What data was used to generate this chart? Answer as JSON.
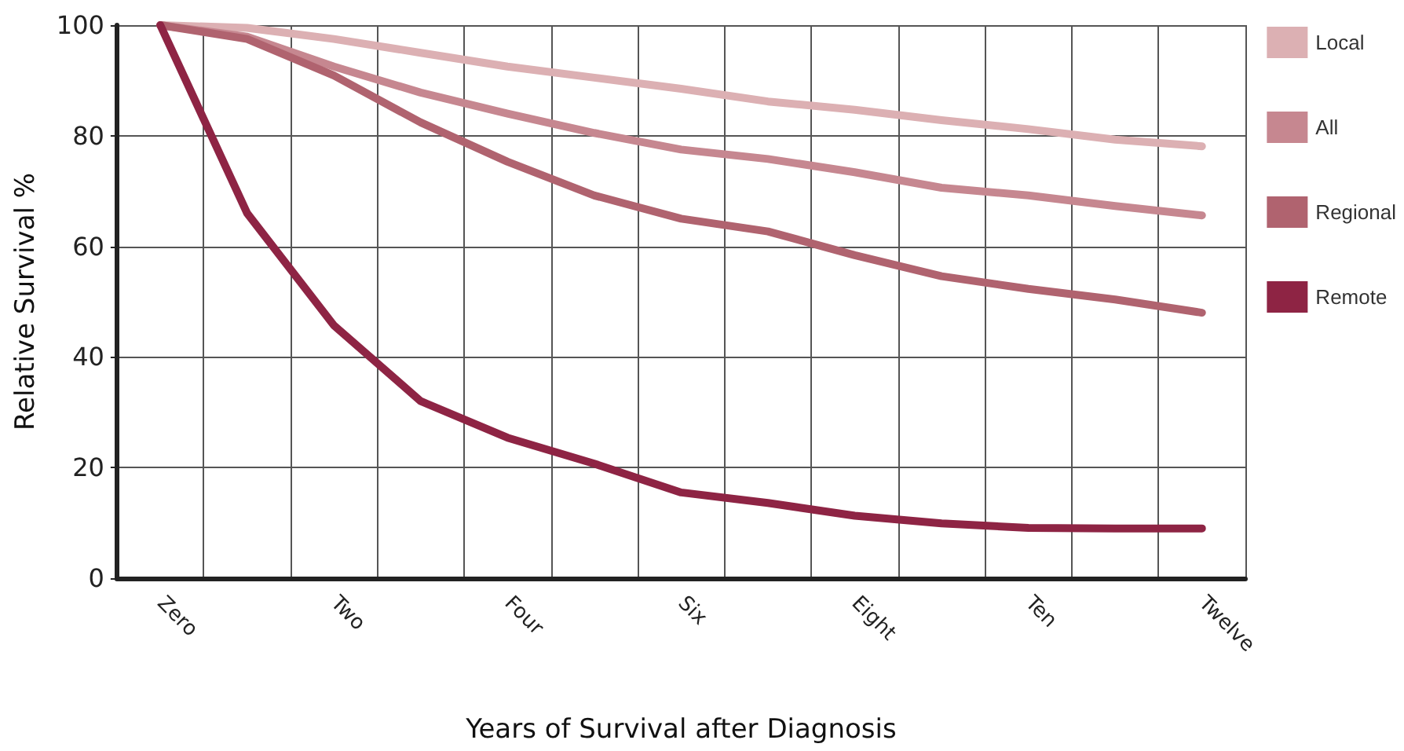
{
  "chart_data": {
    "type": "line",
    "xlabel": "Years of Survival after Diagnosis",
    "ylabel": "Relative Survival %",
    "categories": [
      "Zero",
      null,
      "Two",
      null,
      "Four",
      null,
      "Six",
      null,
      "Eight",
      null,
      "Ten",
      null,
      "Twelve"
    ],
    "ylim": [
      0,
      100
    ],
    "yticks": [
      0,
      20,
      40,
      60,
      80,
      100
    ],
    "grid": true,
    "legend": "right",
    "marker": "none",
    "line_style": "solid",
    "series": [
      {
        "name": "Local",
        "color": "#dcb0b3",
        "values": [
          100,
          99.5,
          97.5,
          95,
          92.5,
          90.5,
          88.5,
          86.2,
          84.7,
          82.8,
          81.2,
          79.3,
          78.1
        ]
      },
      {
        "name": "All",
        "color": "#c68790",
        "values": [
          100,
          97.9,
          92.5,
          87.8,
          84,
          80.5,
          77.5,
          75.8,
          73.4,
          70.6,
          69.2,
          67.3,
          65.6
        ]
      },
      {
        "name": "Regional",
        "color": "#b0636f",
        "values": [
          100,
          97.5,
          90.9,
          82.4,
          75.3,
          69.2,
          65,
          62.7,
          58.4,
          54.6,
          52.3,
          50.4,
          48
        ]
      },
      {
        "name": "Remote",
        "color": "#8e2444",
        "values": [
          100,
          66,
          45.7,
          32,
          25.4,
          20.7,
          15.5,
          13.6,
          11.3,
          9.9,
          9.1,
          9,
          9
        ]
      }
    ]
  }
}
